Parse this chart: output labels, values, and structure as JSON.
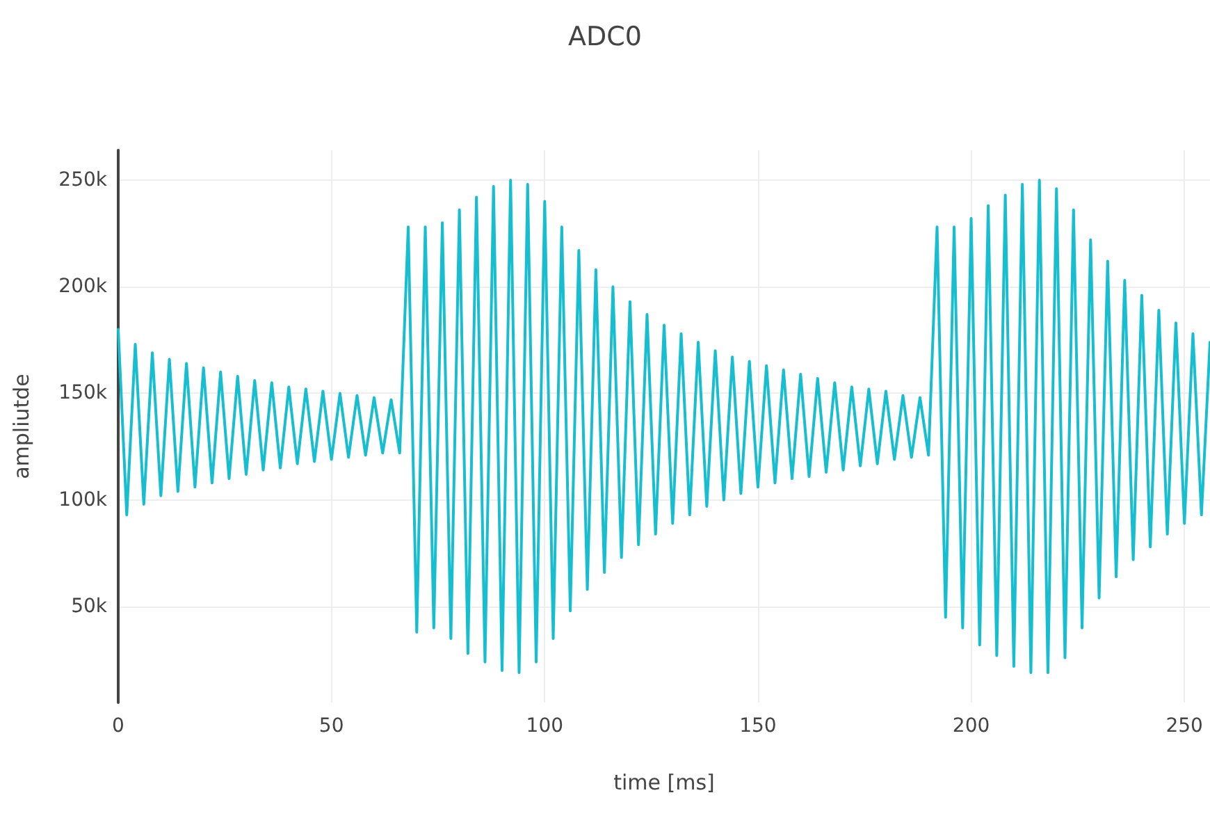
{
  "chart_data": {
    "type": "line",
    "title": "ADC0",
    "xlabel": "time [ms]",
    "ylabel": "ampliutde",
    "x": [
      0,
      2,
      4,
      6,
      8,
      10,
      12,
      14,
      16,
      18,
      20,
      22,
      24,
      26,
      28,
      30,
      32,
      34,
      36,
      38,
      40,
      42,
      44,
      46,
      48,
      50,
      52,
      54,
      56,
      58,
      60,
      62,
      64,
      66,
      68,
      70,
      72,
      74,
      76,
      78,
      80,
      82,
      84,
      86,
      88,
      90,
      92,
      94,
      96,
      98,
      100,
      102,
      104,
      106,
      108,
      110,
      112,
      114,
      116,
      118,
      120,
      122,
      124,
      126,
      128,
      130,
      132,
      134,
      136,
      138,
      140,
      142,
      144,
      146,
      148,
      150,
      152,
      154,
      156,
      158,
      160,
      162,
      164,
      166,
      168,
      170,
      172,
      174,
      176,
      178,
      180,
      182,
      184,
      186,
      188,
      190,
      192,
      194,
      196,
      198,
      200,
      202,
      204,
      206,
      208,
      210,
      212,
      214,
      216,
      218,
      220,
      222,
      224,
      226,
      228,
      230,
      232,
      234,
      236,
      238,
      240,
      242,
      244,
      246,
      248,
      250,
      252,
      254,
      256
    ],
    "series": [
      {
        "color": "#17becf",
        "values": [
          180000,
          93000,
          173000,
          98000,
          169000,
          102000,
          166000,
          104000,
          164000,
          106000,
          162000,
          108000,
          160000,
          110000,
          158000,
          112000,
          156000,
          114000,
          155000,
          115000,
          153000,
          117000,
          152000,
          118000,
          151000,
          119000,
          150000,
          120000,
          149000,
          121000,
          148000,
          122000,
          147000,
          122000,
          228000,
          38000,
          228000,
          40000,
          230000,
          35000,
          236000,
          28000,
          242000,
          24000,
          247000,
          20000,
          250000,
          19000,
          248000,
          24000,
          240000,
          35000,
          228000,
          48000,
          217000,
          58000,
          208000,
          66000,
          200000,
          73000,
          193000,
          79000,
          187000,
          84000,
          182000,
          89000,
          178000,
          93000,
          174000,
          97000,
          170000,
          100000,
          167000,
          103000,
          165000,
          106000,
          163000,
          108000,
          161000,
          110000,
          159000,
          111000,
          157000,
          113000,
          155000,
          114000,
          153000,
          116000,
          152000,
          117000,
          151000,
          119000,
          149000,
          120000,
          148000,
          121000,
          228000,
          45000,
          228000,
          40000,
          232000,
          32000,
          238000,
          27000,
          243000,
          22000,
          248000,
          19000,
          250000,
          19000,
          246000,
          26000,
          236000,
          40000,
          222000,
          54000,
          212000,
          64000,
          203000,
          72000,
          196000,
          78000,
          189000,
          84000,
          183000,
          89000,
          178000,
          93000,
          174000
        ]
      }
    ],
    "xlim": [
      0,
      256
    ],
    "xticks": [
      0,
      50,
      100,
      150,
      200,
      250
    ],
    "ylim": [
      5000,
      264000
    ],
    "yticks": [
      {
        "value": 50000,
        "label": "50k"
      },
      {
        "value": 100000,
        "label": "100k"
      },
      {
        "value": 150000,
        "label": "150k"
      },
      {
        "value": 200000,
        "label": "200k"
      },
      {
        "value": 250000,
        "label": "250k"
      }
    ],
    "grid": true,
    "marker": "none",
    "line_style": "solid"
  }
}
